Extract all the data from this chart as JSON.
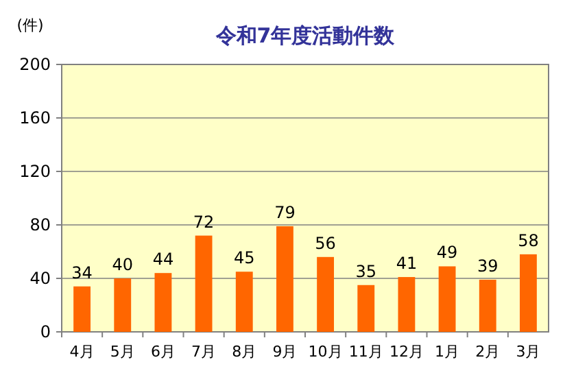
{
  "chart_data": {
    "type": "bar",
    "title": "令和7年度活動件数",
    "ylabel": "(件)",
    "categories": [
      "4月",
      "5月",
      "6月",
      "7月",
      "8月",
      "9月",
      "10月",
      "11月",
      "12月",
      "1月",
      "2月",
      "3月"
    ],
    "values": [
      34,
      40,
      44,
      72,
      45,
      79,
      56,
      35,
      41,
      49,
      39,
      58
    ],
    "color": "#ff6600",
    "ylim": [
      0,
      200
    ],
    "yticks": [
      0,
      40,
      80,
      120,
      160,
      200
    ],
    "grid": "y",
    "data_labels": true
  }
}
